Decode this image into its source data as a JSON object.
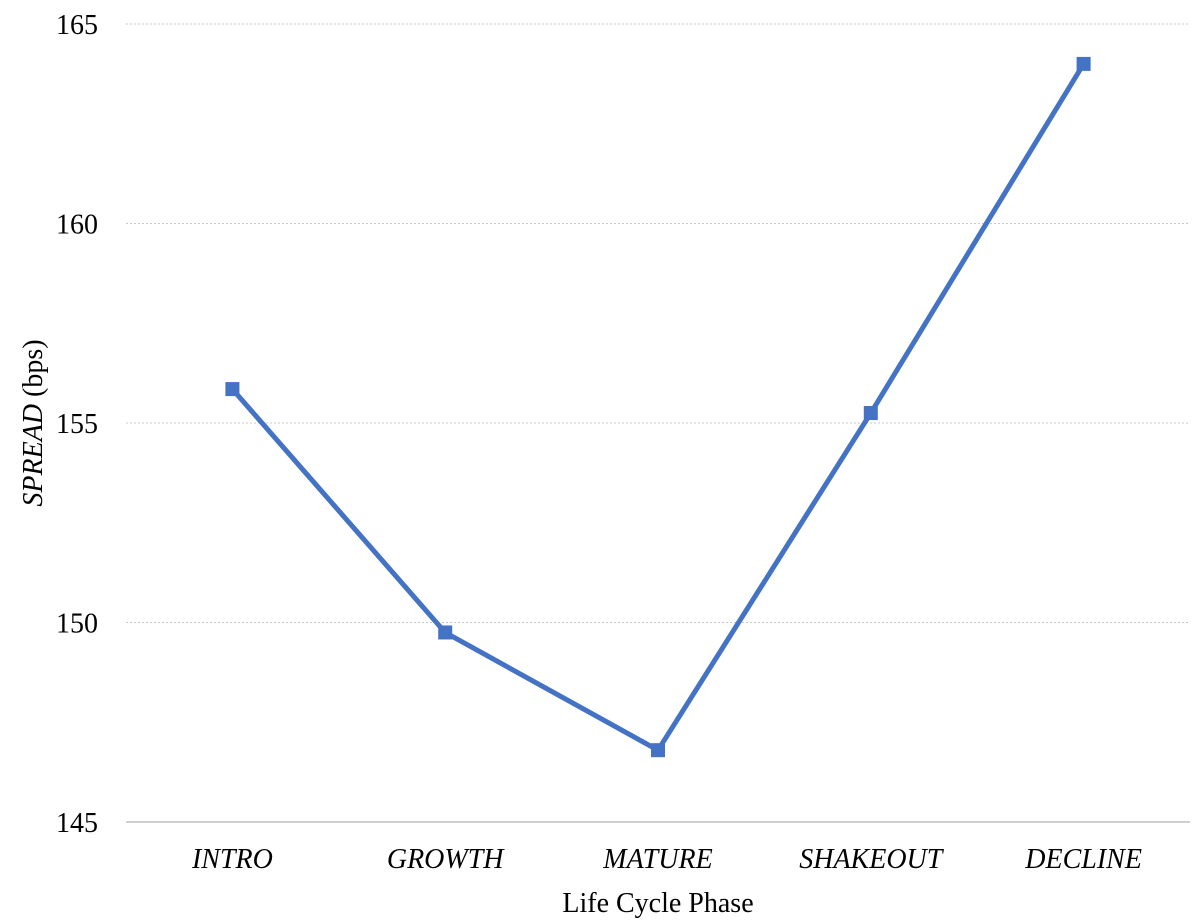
{
  "chart_data": {
    "type": "line",
    "categories": [
      "INTRO",
      "GROWTH",
      "MATURE",
      "SHAKEOUT",
      "DECLINE"
    ],
    "series": [
      {
        "values": [
          155.85,
          149.75,
          146.8,
          155.25,
          164.0
        ],
        "color": "#4472c4",
        "marker": "square"
      }
    ],
    "xlabel": "Life Cycle Phase",
    "ylabel_italic": "SPREAD",
    "ylabel_rest": " (bps)",
    "ylim": [
      145,
      165
    ],
    "yticks": [
      145,
      150,
      155,
      160,
      165
    ],
    "grid": true,
    "legend": "none"
  }
}
